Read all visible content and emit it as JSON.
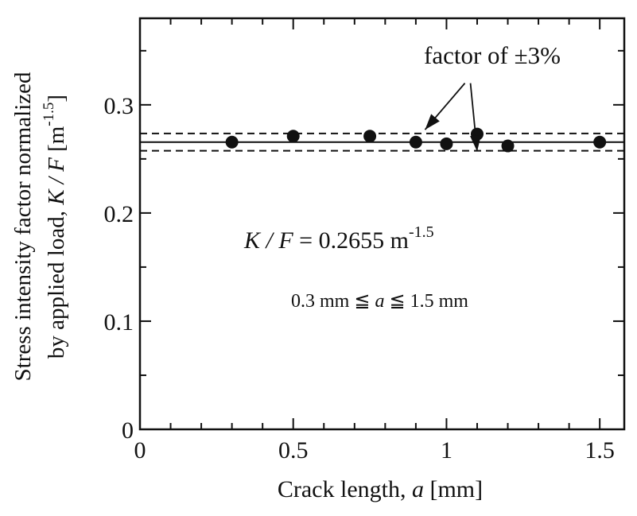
{
  "chart_data": {
    "type": "scatter",
    "xlabel_prefix": "Crack length, ",
    "xlabel_var": "a",
    "xlabel_unit": " [mm]",
    "ylabel_line1": "Stress intensity factor normalized",
    "ylabel_line2_prefix": "by applied load, ",
    "ylabel_var": "K / F",
    "ylabel_unit": " [m",
    "ylabel_exp": "-1.5",
    "ylabel_close": "]",
    "xlim": [
      0,
      1.58
    ],
    "ylim": [
      0,
      0.38
    ],
    "x_ticks": [
      0,
      0.5,
      1,
      1.5
    ],
    "x_tick_labels": [
      "0",
      "0.5",
      "1",
      "1.5"
    ],
    "x_minor_step": 0.1,
    "y_ticks": [
      0,
      0.1,
      0.2,
      0.3
    ],
    "y_tick_labels": [
      "0",
      "0.1",
      "0.2",
      "0.3"
    ],
    "y_minor_step": 0.05,
    "grid": false,
    "series": [
      {
        "name": "K/F",
        "x": [
          0.3,
          0.5,
          0.75,
          0.9,
          1.0,
          1.1,
          1.2,
          1.5
        ],
        "y": [
          0.2655,
          0.271,
          0.271,
          0.2655,
          0.264,
          0.273,
          0.262,
          0.2655
        ]
      }
    ],
    "mean_line": 0.2655,
    "band_upper": 0.2735,
    "band_lower": 0.2575,
    "annotations": {
      "band_label": "factor of ±3%",
      "formula_var": "K / F",
      "formula_value": " = 0.2655 m",
      "formula_exp": "-1.5",
      "range_text_1": "0.3 mm ≦ ",
      "range_var": "a",
      "range_text_2": " ≦ 1.5 mm",
      "arrow_origin": [
        1.06,
        0.32
      ],
      "arrow_targets": [
        [
          0.93,
          0.277
        ],
        [
          1.1,
          0.257
        ]
      ]
    }
  }
}
